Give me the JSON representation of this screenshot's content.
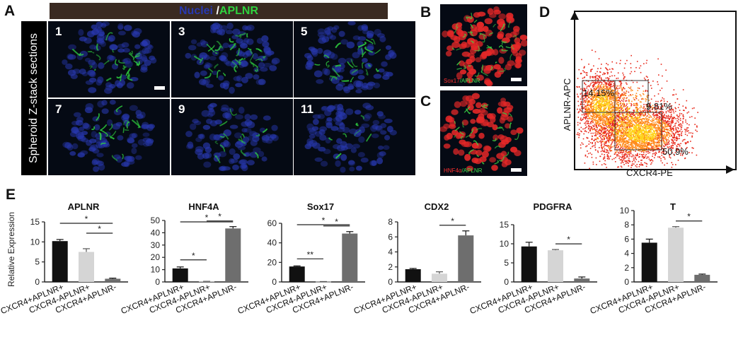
{
  "panel_A": {
    "label": "A",
    "header_nuclei": "Nuclei",
    "header_slash": " /",
    "header_aplnr": "APLNR",
    "side_label": "Spheroid Z-stack sections",
    "tiles": [
      "1",
      "3",
      "5",
      "7",
      "9",
      "11"
    ]
  },
  "panel_B": {
    "label": "B",
    "caption_red": "Sox17",
    "caption_green": "/APLNR"
  },
  "panel_C": {
    "label": "C",
    "caption_red": "HNF4α",
    "caption_green": "/APLNR"
  },
  "panel_D": {
    "label": "D",
    "y_axis": "APLNR-APC",
    "x_axis": "CXCR4-PE",
    "gate_upper_left": "14.15%",
    "gate_upper_right": "9.81%",
    "gate_lower_right": "50.9%"
  },
  "panel_E": {
    "label": "E",
    "ylabel": "Relative Expression"
  },
  "colors": {
    "black": "#111111",
    "light_gray": "#d5d5d5",
    "dark_gray": "#6e6e6e",
    "nuclei_blue": "#2838b0",
    "aplnr_green": "#2fd23f"
  },
  "chart_data": [
    {
      "type": "bar",
      "title": "APLNR",
      "categories": [
        "CXCR4+APLNR+",
        "CXCR4-APLNR+",
        "CXCR4+APLNR-"
      ],
      "values": [
        10.2,
        7.5,
        0.8
      ],
      "errors": [
        0.4,
        0.8,
        0.15
      ],
      "ylim": [
        0,
        15
      ],
      "yticks": [
        "0",
        "5",
        "10",
        "15"
      ],
      "significance": [
        {
          "from": 0,
          "to": 2,
          "label": "*"
        },
        {
          "from": 1,
          "to": 2,
          "label": "*"
        }
      ]
    },
    {
      "type": "bar",
      "title": "HNF4A",
      "categories": [
        "CXCR4+APLNR+",
        "CXCR4-APLNR+",
        "CXCR4+APLNR-"
      ],
      "values": [
        11,
        0.4,
        43.5
      ],
      "errors": [
        1.2,
        0.1,
        1.5
      ],
      "ylim": [
        0,
        50
      ],
      "yticks": [
        "0",
        "10",
        "20",
        "30",
        "40",
        "50"
      ],
      "significance": [
        {
          "from": 0,
          "to": 1,
          "label": "*"
        },
        {
          "from": 0,
          "to": 2,
          "label": "*"
        },
        {
          "from": 1,
          "to": 2,
          "label": "*"
        }
      ]
    },
    {
      "type": "bar",
      "title": "Sox17",
      "categories": [
        "CXCR4+APLNR+",
        "CXCR4-APLNR+",
        "CXCR4+APLNR-"
      ],
      "values": [
        15.8,
        0.3,
        49.5
      ],
      "errors": [
        0.6,
        0.1,
        2.0
      ],
      "ylim": [
        0,
        60
      ],
      "yticks": [
        "0",
        "20",
        "40",
        "60"
      ],
      "significance": [
        {
          "from": 0,
          "to": 1,
          "label": "**"
        },
        {
          "from": 0,
          "to": 2,
          "label": "*"
        },
        {
          "from": 1,
          "to": 2,
          "label": "*"
        }
      ]
    },
    {
      "type": "bar",
      "title": "CDX2",
      "categories": [
        "CXCR4+APLNR+",
        "CXCR4-APLNR+",
        "CXCR4+APLNR-"
      ],
      "values": [
        1.7,
        1.1,
        6.2
      ],
      "errors": [
        0.1,
        0.25,
        0.6
      ],
      "ylim": [
        0,
        8
      ],
      "yticks": [
        "0",
        "2",
        "4",
        "6",
        "8"
      ],
      "significance": [
        {
          "from": 1,
          "to": 2,
          "label": "*"
        }
      ]
    },
    {
      "type": "bar",
      "title": "PDGFRA",
      "categories": [
        "CXCR4+APLNR+",
        "CXCR4-APLNR+",
        "CXCR4+APLNR-"
      ],
      "values": [
        9.3,
        8.3,
        0.9
      ],
      "errors": [
        1.1,
        0.2,
        0.4
      ],
      "ylim": [
        0,
        15
      ],
      "yticks": [
        "0",
        "5",
        "10",
        "15"
      ],
      "significance": [
        {
          "from": 1,
          "to": 2,
          "label": "*"
        }
      ]
    },
    {
      "type": "bar",
      "title": "T",
      "categories": [
        "CXCR4+APLNR+",
        "CXCR4-APLNR+",
        "CXCR4+APLNR-"
      ],
      "values": [
        5.5,
        7.6,
        1.0
      ],
      "errors": [
        0.5,
        0.15,
        0.1
      ],
      "ylim": [
        0,
        10
      ],
      "yticks": [
        "0",
        "2",
        "4",
        "6",
        "8",
        "10"
      ],
      "significance": [
        {
          "from": 1,
          "to": 2,
          "label": "*"
        }
      ]
    }
  ]
}
